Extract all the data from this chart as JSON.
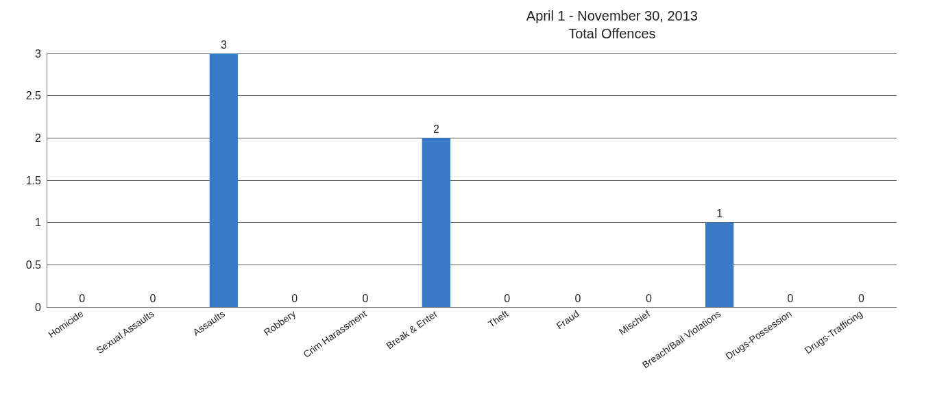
{
  "chart_data": {
    "type": "bar",
    "title": "April 1 - November 30, 2013",
    "subtitle": "Total Offences",
    "categories": [
      "Homicide",
      "Sexual Assaults",
      "Assaults",
      "Robbery",
      "Crim Harassment",
      "Break & Enter",
      "Theft",
      "Fraud",
      "Mischief",
      "Breach/Bail Violations",
      "Drugs-Possession",
      "Drugs-Trafficing"
    ],
    "values": [
      0,
      0,
      3,
      0,
      0,
      2,
      0,
      0,
      0,
      1,
      0,
      0
    ],
    "color": "#3a7bc8",
    "ylim": [
      0,
      3
    ],
    "yticks": [
      0,
      0.5,
      1,
      1.5,
      2,
      2.5,
      3
    ],
    "grid": "y",
    "data_labels": true
  }
}
